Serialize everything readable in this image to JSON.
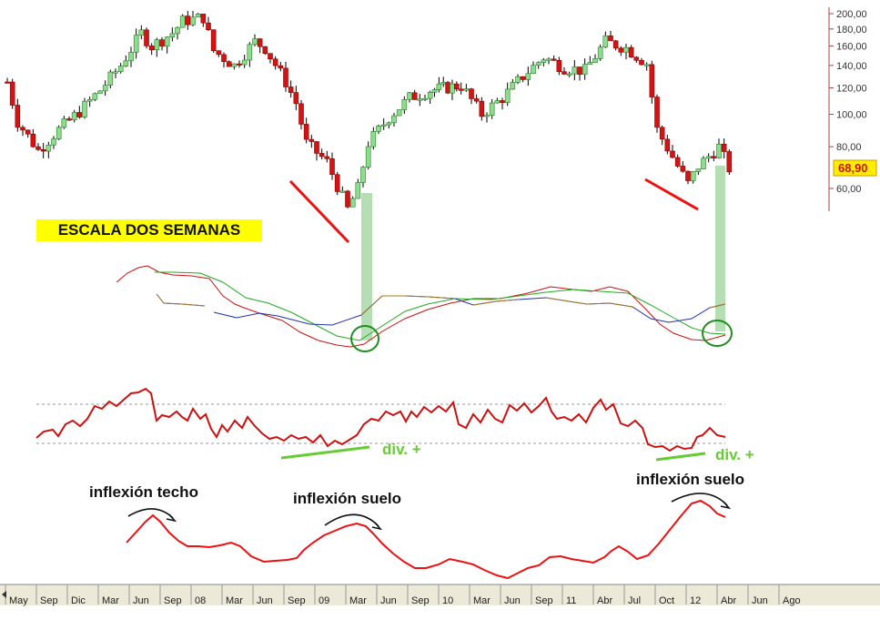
{
  "colors": {
    "bull": "#8edc8e",
    "bear": "#d31414",
    "wick": "#000000",
    "annotation_red": "#ee1111",
    "annotation_green": "#66cc33",
    "highlight_green": "#a8d8a8",
    "panel_red": "#cc1111",
    "panel_green": "#22aa22",
    "panel_blue": "#2233aa",
    "panel_olive": "#aa7722",
    "price_badge_bg": "#ffee00",
    "price_badge_fg": "#cc1111",
    "time_axis_bg": "#ece9d8"
  },
  "labels": {
    "scale": "ESCALA DOS SEMANAS",
    "div_left": "div. +",
    "div_right": "div. +",
    "inflexion_techo": "inflexión techo",
    "inflexion_suelo_1": "inflexión suelo",
    "inflexion_suelo_2": "inflexión suelo",
    "last_price": "68,90"
  },
  "chart_data": {
    "type": "line",
    "price_axis": {
      "scale": "log",
      "ticks": [
        "200,00",
        "180,00",
        "160,00",
        "140,00",
        "120,00",
        "100,00",
        "80,00",
        "60,00"
      ]
    },
    "time_axis": {
      "ticks": [
        "May",
        "Sep",
        "Dic",
        "Mar",
        "Jun",
        "Sep",
        "08",
        "Mar",
        "Jun",
        "Sep",
        "09",
        "Mar",
        "Jun",
        "Sep",
        "10",
        "Mar",
        "Jun",
        "Sep",
        "11",
        "Abr",
        "Jul",
        "Oct",
        "12",
        "Abr",
        "Jun",
        "Ago"
      ]
    },
    "price_series": {
      "name": "",
      "period": "2 weeks",
      "points": [
        [
          "2006-05",
          125
        ],
        [
          "2006-06",
          95
        ],
        [
          "2006-08",
          78
        ],
        [
          "2006-10",
          90
        ],
        [
          "2006-12",
          102
        ],
        [
          "2007-02",
          118
        ],
        [
          "2007-04",
          140
        ],
        [
          "2007-06",
          175
        ],
        [
          "2007-07",
          160
        ],
        [
          "2007-09",
          175
        ],
        [
          "2007-10",
          190
        ],
        [
          "2007-12",
          195
        ],
        [
          "2008-01",
          155
        ],
        [
          "2008-03",
          140
        ],
        [
          "2008-05",
          165
        ],
        [
          "2008-06",
          158
        ],
        [
          "2008-08",
          125
        ],
        [
          "2008-09",
          108
        ],
        [
          "2008-10",
          82
        ],
        [
          "2008-12",
          72
        ],
        [
          "2009-02",
          52
        ],
        [
          "2009-03",
          60
        ],
        [
          "2009-04",
          82
        ],
        [
          "2009-06",
          98
        ],
        [
          "2009-08",
          112
        ],
        [
          "2009-10",
          118
        ],
        [
          "2010-01",
          122
        ],
        [
          "2010-03",
          100
        ],
        [
          "2010-05",
          112
        ],
        [
          "2010-07",
          130
        ],
        [
          "2010-09",
          148
        ],
        [
          "2010-11",
          138
        ],
        [
          "2011-01",
          135
        ],
        [
          "2011-03",
          165
        ],
        [
          "2011-05",
          158
        ],
        [
          "2011-07",
          142
        ],
        [
          "2011-08",
          90
        ],
        [
          "2011-10",
          70
        ],
        [
          "2011-11",
          62
        ],
        [
          "2011-12",
          70
        ],
        [
          "2012-02",
          80
        ],
        [
          "2012-03",
          68.9
        ]
      ]
    },
    "annotations": [
      "ESCALA DOS SEMANAS",
      "div. +",
      "div. +",
      "inflexión techo",
      "inflexión suelo",
      "inflexión suelo"
    ],
    "grid": false
  }
}
